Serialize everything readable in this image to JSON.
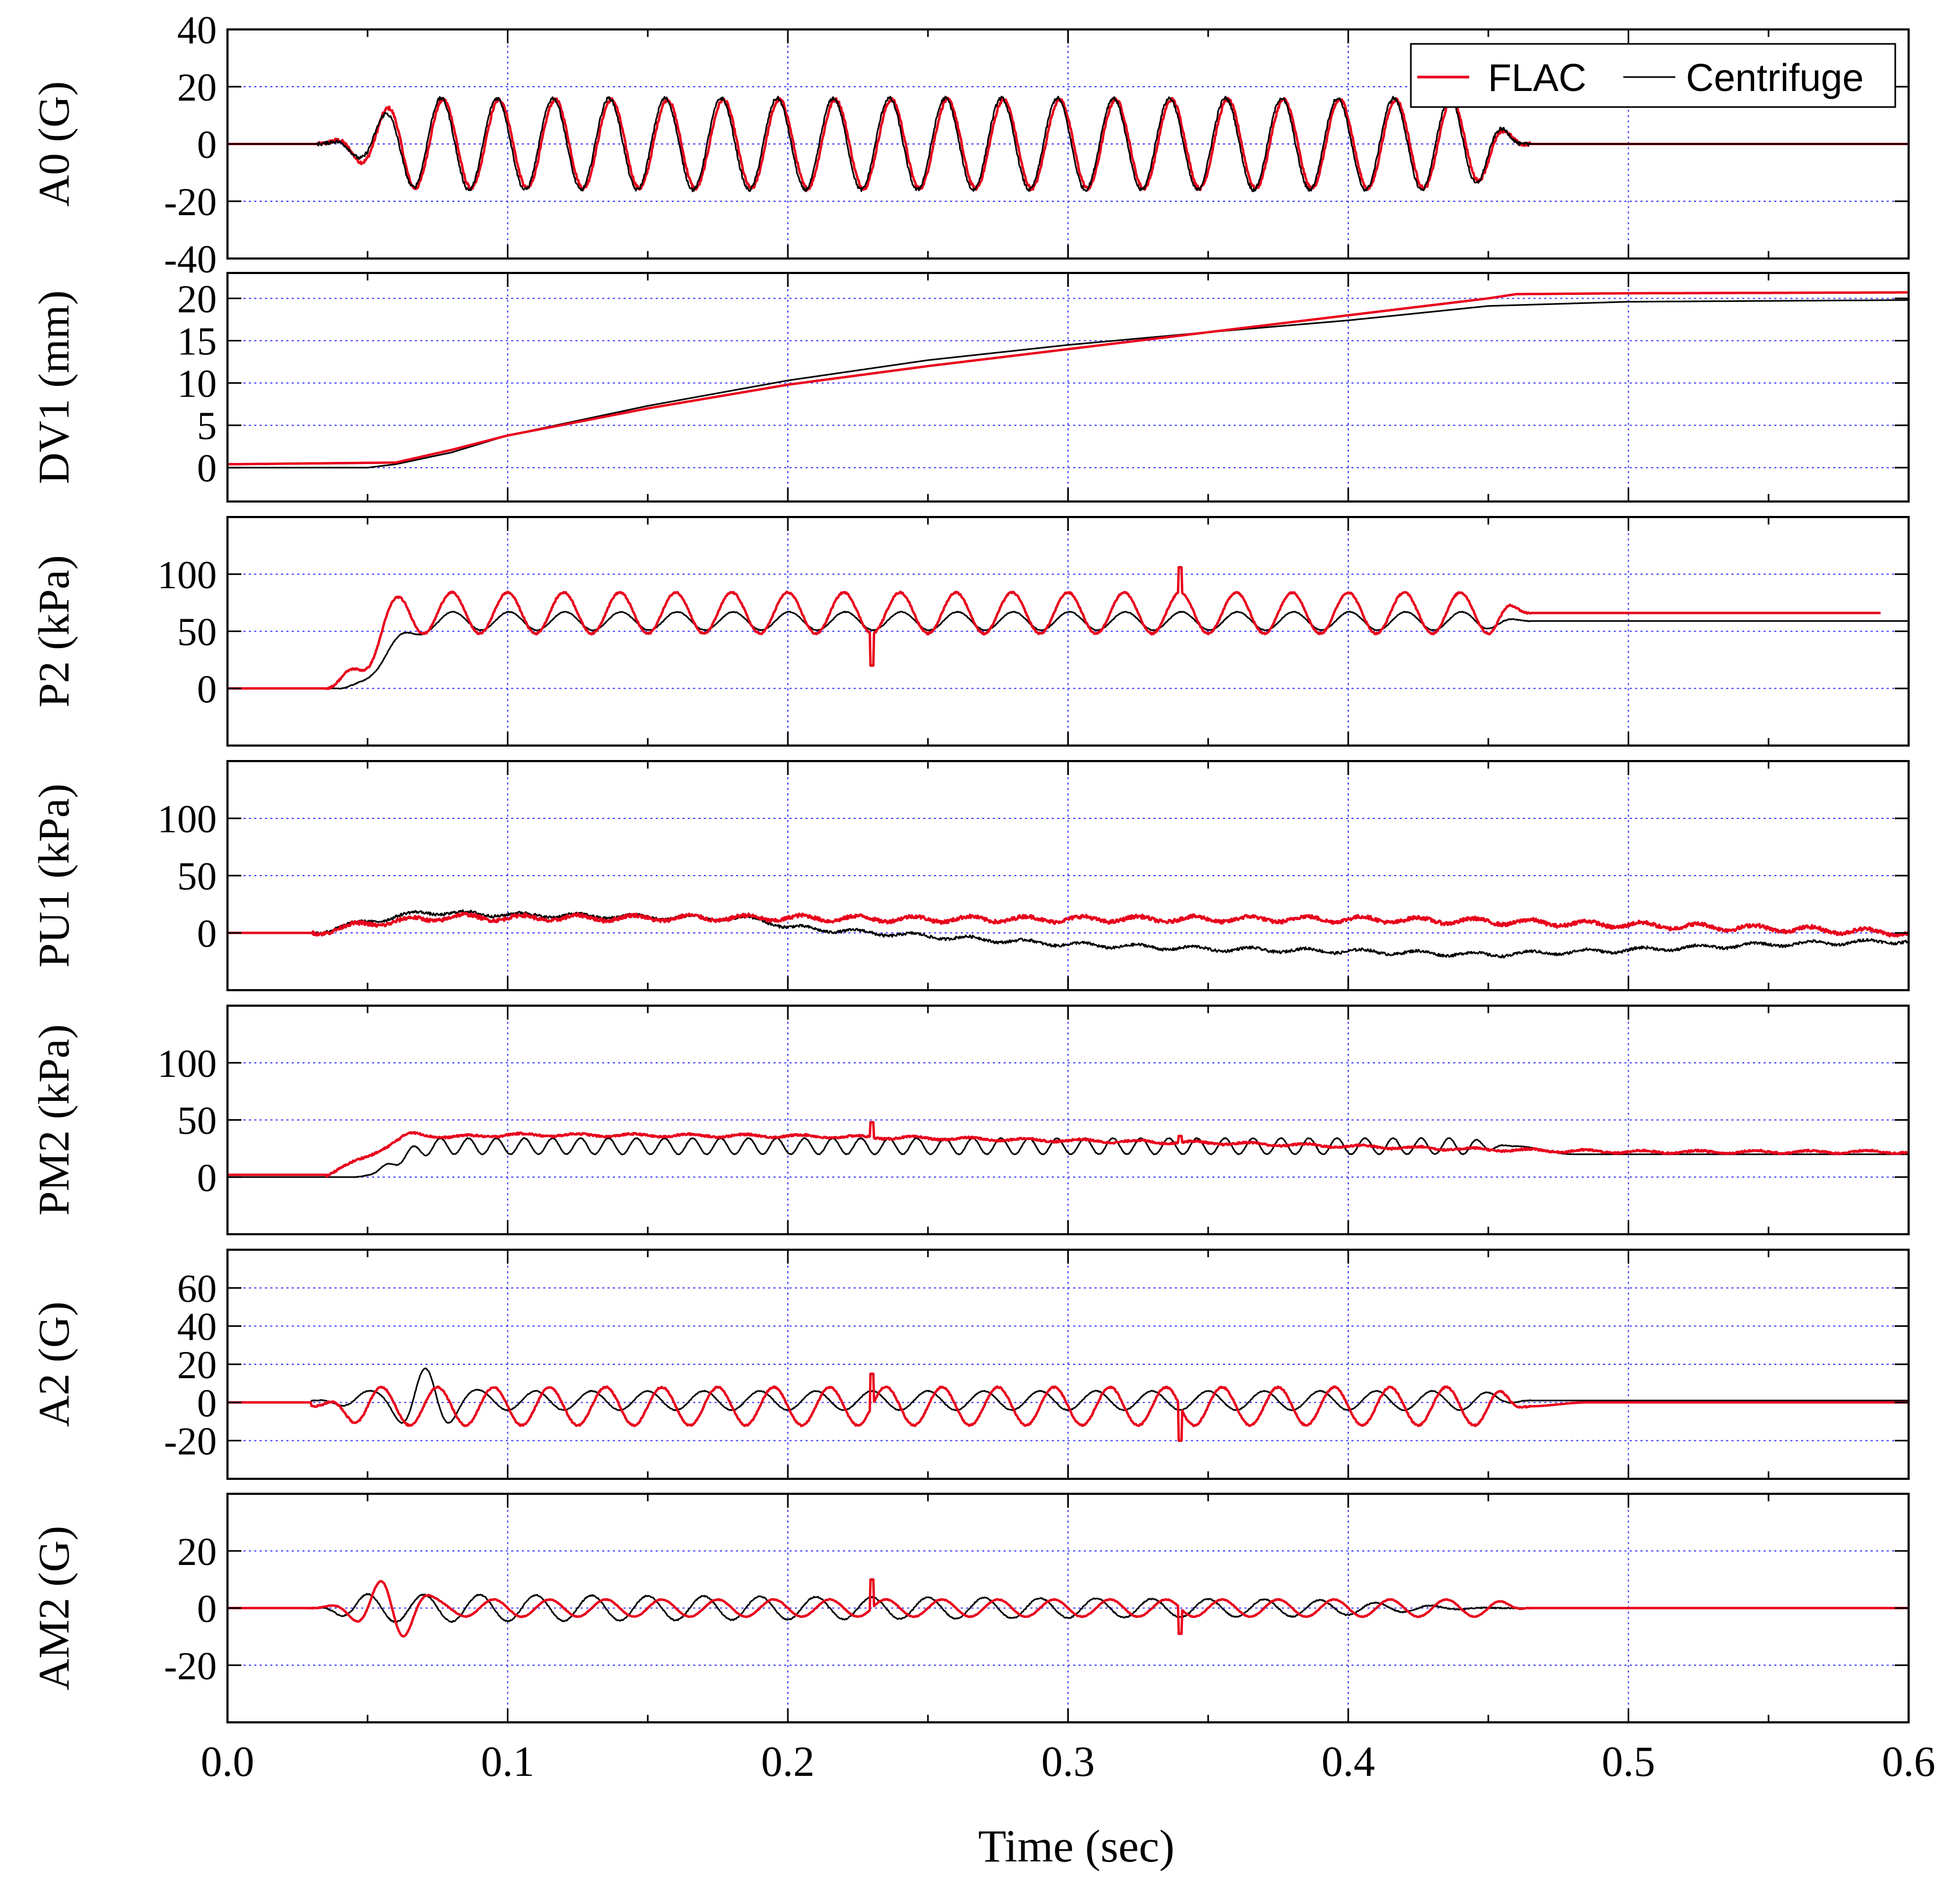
{
  "chart_data": {
    "type": "line",
    "title": "",
    "xlabel": "Time (sec)",
    "xlim": [
      0.0,
      0.6
    ],
    "xticks": [
      "0.0",
      "0.1",
      "0.2",
      "0.3",
      "0.4",
      "0.5",
      "0.6"
    ],
    "grid": true,
    "legend": {
      "placement": "top-right",
      "entries": [
        "FLAC",
        "Centrifuge"
      ]
    },
    "series_colors": {
      "FLAC": "#e8001c",
      "Centrifuge": "#000000",
      "grid": "#3333ff"
    },
    "panels": [
      {
        "ylabel": "A0 (G)",
        "ylim": [
          -40,
          40
        ],
        "yticks": [
          {
            "v": 40,
            "t": "40"
          },
          {
            "v": 20,
            "t": "20"
          },
          {
            "v": 0,
            "t": "0"
          },
          {
            "v": -20,
            "t": "-20"
          },
          {
            "v": -40,
            "t": "-40"
          }
        ],
        "gridlines": [
          20,
          0,
          -20
        ],
        "series": [
          {
            "name": "FLAC",
            "kind": "sine",
            "t0": 0.032,
            "t1": 0.465,
            "freq": 50,
            "amp": 15.5,
            "ramp_in": 0.035,
            "ramp_out": 0.025,
            "offset_start": 0,
            "offset_end": 0,
            "phase": 0
          },
          {
            "name": "Centrifuge",
            "kind": "sine",
            "t0": 0.032,
            "t1": 0.465,
            "freq": 50,
            "amp": 16,
            "ramp_in": 0.04,
            "ramp_out": 0.025,
            "offset_start": 0,
            "offset_end": 0,
            "phase": 0.08
          }
        ]
      },
      {
        "ylabel": "DV1 (mm)",
        "ylim": [
          -4,
          23
        ],
        "yticks": [
          {
            "v": 20,
            "t": "20"
          },
          {
            "v": 15,
            "t": "15"
          },
          {
            "v": 10,
            "t": "10"
          },
          {
            "v": 5,
            "t": "5"
          },
          {
            "v": 0,
            "t": "0"
          }
        ],
        "gridlines": [
          20,
          15,
          10,
          5,
          0
        ],
        "series": [
          {
            "name": "Centrifuge",
            "kind": "points",
            "x": [
              0.0,
              0.05,
              0.06,
              0.08,
              0.1,
              0.15,
              0.2,
              0.25,
              0.3,
              0.35,
              0.4,
              0.45,
              0.5,
              0.6
            ],
            "y": [
              0,
              0,
              0.4,
              1.8,
              3.8,
              7.3,
              10.3,
              12.7,
              14.5,
              16.0,
              17.4,
              19.1,
              19.6,
              19.8
            ]
          },
          {
            "name": "FLAC",
            "kind": "points",
            "x": [
              0.0,
              0.06,
              0.08,
              0.1,
              0.15,
              0.2,
              0.25,
              0.3,
              0.35,
              0.4,
              0.45,
              0.46,
              0.5,
              0.6
            ],
            "y": [
              0.4,
              0.6,
              2.1,
              3.8,
              7.0,
              9.8,
              12.0,
              14.0,
              16.0,
              18.0,
              20.0,
              20.5,
              20.6,
              20.7
            ]
          }
        ]
      },
      {
        "ylabel": "P2 (kPa)",
        "ylim": [
          -50,
          150
        ],
        "yticks": [
          {
            "v": 100,
            "t": "100"
          },
          {
            "v": 50,
            "t": "50"
          },
          {
            "v": 0,
            "t": "0"
          }
        ],
        "gridlines": [
          100,
          50,
          0
        ],
        "series": [
          {
            "name": "Centrifuge",
            "kind": "sine",
            "t0": 0.04,
            "t1": 0.465,
            "t_end": 0.6,
            "freq": 50,
            "amp": 8,
            "ramp_in": 0.025,
            "ramp_out": 0.02,
            "offset_start": 0,
            "offset_end": 59,
            "rise": 0.035,
            "phase": 0.45
          },
          {
            "name": "FLAC",
            "kind": "sine",
            "t0": 0.035,
            "t1": 0.465,
            "t_end": 0.59,
            "freq": 50,
            "amp": 18,
            "ramp_in": 0.02,
            "ramp_out": 0.015,
            "offset_start": 0,
            "offset_end": 66,
            "rise": 0.03,
            "phase": 0.0,
            "spikes": [
              {
                "t": 0.23,
                "v": 20
              },
              {
                "t": 0.34,
                "v": 106
              }
            ]
          }
        ]
      },
      {
        "ylabel": "PU1 (kPa)",
        "ylim": [
          -50,
          150
        ],
        "yticks": [
          {
            "v": 100,
            "t": "100"
          },
          {
            "v": 50,
            "t": "50"
          },
          {
            "v": 0,
            "t": "0"
          }
        ],
        "gridlines": [
          100,
          50,
          0
        ],
        "series": [
          {
            "name": "Centrifuge",
            "kind": "points",
            "noise": 3,
            "x": [
              0.0,
              0.03,
              0.05,
              0.07,
              0.1,
              0.15,
              0.19,
              0.2,
              0.23,
              0.3,
              0.35,
              0.4,
              0.45,
              0.5,
              0.55,
              0.6
            ],
            "y": [
              0,
              0,
              10,
              18,
              16,
              14,
              12,
              5,
              0,
              -10,
              -14,
              -16,
              -19,
              -15,
              -10,
              -7
            ]
          },
          {
            "name": "FLAC",
            "kind": "points",
            "noise": 4,
            "x": [
              0.0,
              0.03,
              0.05,
              0.08,
              0.1,
              0.15,
              0.2,
              0.25,
              0.3,
              0.35,
              0.4,
              0.45,
              0.5,
              0.55,
              0.6
            ],
            "y": [
              0,
              0,
              8,
              14,
              13,
              13,
              13,
              12,
              12,
              12,
              12,
              10,
              7,
              4,
              0
            ]
          }
        ]
      },
      {
        "ylabel": "PM2 (kPa)",
        "ylim": [
          -50,
          150
        ],
        "yticks": [
          {
            "v": 100,
            "t": "100"
          },
          {
            "v": 50,
            "t": "50"
          },
          {
            "v": 0,
            "t": "0"
          }
        ],
        "gridlines": [
          100,
          50,
          0
        ],
        "series": [
          {
            "name": "Centrifuge",
            "kind": "sine",
            "t0": 0.045,
            "t1": 0.46,
            "t_end": 0.6,
            "freq": 100,
            "amp": 7,
            "ramp_in": 0.03,
            "ramp_out": 0.02,
            "offset_start": 0,
            "offset_end": 20,
            "rise": 0.03,
            "mid": 27,
            "phase": 0.3
          },
          {
            "name": "FLAC",
            "kind": "points",
            "noise": 2,
            "x": [
              0.0,
              0.035,
              0.05,
              0.065,
              0.08,
              0.1,
              0.2,
              0.3,
              0.35,
              0.4,
              0.45,
              0.5,
              0.6
            ],
            "y": [
              2,
              2,
              18,
              38,
              35,
              37,
              36,
              32,
              30,
              27,
              24,
              22,
              22
            ],
            "spikes": [
              {
                "t": 0.23,
                "v": 48
              },
              {
                "t": 0.34,
                "v": 36
              }
            ]
          }
        ]
      },
      {
        "ylabel": "A2 (G)",
        "ylim": [
          -40,
          80
        ],
        "yticks": [
          {
            "v": 60,
            "t": "60"
          },
          {
            "v": 40,
            "t": "40"
          },
          {
            "v": 20,
            "t": "20"
          },
          {
            "v": 0,
            "t": "0"
          },
          {
            "v": -20,
            "t": "-20"
          }
        ],
        "gridlines": [
          60,
          40,
          20,
          0,
          -20
        ],
        "series": [
          {
            "name": "Centrifuge",
            "kind": "sine",
            "t0": 0.03,
            "t1": 0.465,
            "t_end": 0.6,
            "freq": 50,
            "amp": 5,
            "ramp_in": 0.02,
            "ramp_out": 0.02,
            "offset_start": 0,
            "offset_end": 1,
            "phase": 0.5,
            "burst": {
              "t": 0.07,
              "amp": 12
            }
          },
          {
            "name": "FLAC",
            "kind": "sine",
            "t0": 0.03,
            "t1": 0.465,
            "t_end": 0.6,
            "freq": 50,
            "amp": 10,
            "ramp_in": 0.02,
            "ramp_out": 0.015,
            "offset_start": 0,
            "offset_end": 0,
            "mid": -2,
            "phase": 0.0,
            "spikes": [
              {
                "t": 0.23,
                "v": 15
              },
              {
                "t": 0.34,
                "v": -20
              }
            ]
          }
        ]
      },
      {
        "ylabel": "AM2 (G)",
        "ylim": [
          -40,
          40
        ],
        "yticks": [
          {
            "v": 20,
            "t": "20"
          },
          {
            "v": 0,
            "t": "0"
          },
          {
            "v": -20,
            "t": "-20"
          }
        ],
        "gridlines": [
          20,
          0,
          -20
        ],
        "series": [
          {
            "name": "Centrifuge",
            "kind": "sine",
            "t0": 0.03,
            "t1": 0.46,
            "t_end": 0.6,
            "freq": 50,
            "amp": 5,
            "ramp_in": 0.02,
            "ramp_out": 0.08,
            "offset_start": 0,
            "offset_end": 0,
            "phase": 0.5,
            "decay": 0.5
          },
          {
            "name": "FLAC",
            "kind": "sine",
            "t0": 0.03,
            "t1": 0.465,
            "t_end": 0.6,
            "freq": 50,
            "amp": 3,
            "ramp_in": 0.02,
            "ramp_out": 0.015,
            "offset_start": 0,
            "offset_end": 0,
            "phase": 0.0,
            "burst": {
              "t": 0.06,
              "amp": 8
            },
            "spikes": [
              {
                "t": 0.23,
                "v": 10
              },
              {
                "t": 0.34,
                "v": -9
              }
            ]
          }
        ]
      }
    ]
  }
}
